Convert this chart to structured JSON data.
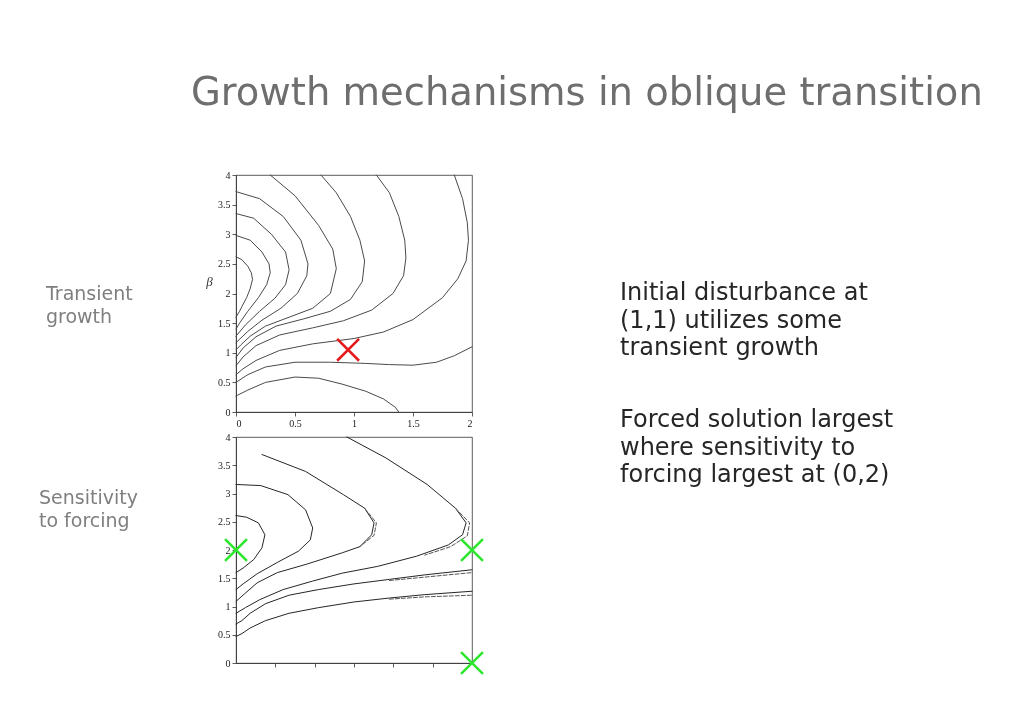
{
  "chart_data": [
    {
      "type": "line",
      "title": "Growth mechanisms in oblique transition",
      "ylabel": "β",
      "annotations": [
        "Transient\ngrowth"
      ],
      "xlim": [
        0,
        2
      ],
      "ylim": [
        0,
        4
      ],
      "xticks": [
        0,
        0.5,
        1,
        1.5,
        2
      ],
      "yticks": [
        0,
        0.5,
        1,
        1.5,
        2,
        2.5,
        3,
        3.5,
        4
      ],
      "grid": false,
      "series": [
        {
          "color": "#4a4a4a",
          "x": [
            0,
            0.05,
            0.1,
            0.13,
            0.14,
            0.12,
            0.09,
            0.05,
            0.03,
            0
          ],
          "values": [
            2.62,
            2.57,
            2.46,
            2.35,
            2.24,
            2.08,
            1.93,
            1.78,
            1.7,
            1.6
          ]
        },
        {
          "color": "#4a4a4a",
          "x": [
            0,
            0.12,
            0.22,
            0.28,
            0.29,
            0.26,
            0.19,
            0.1,
            0.03,
            0
          ],
          "values": [
            2.98,
            2.9,
            2.7,
            2.5,
            2.35,
            2.15,
            1.93,
            1.7,
            1.5,
            1.4
          ]
        },
        {
          "color": "#4a4a4a",
          "x": [
            0,
            0.15,
            0.3,
            0.42,
            0.45,
            0.42,
            0.33,
            0.2,
            0.08,
            0
          ],
          "values": [
            3.35,
            3.27,
            3.0,
            2.7,
            2.4,
            2.15,
            1.92,
            1.7,
            1.47,
            1.28
          ]
        },
        {
          "color": "#4a4a4a",
          "x": [
            0,
            0.2,
            0.4,
            0.55,
            0.61,
            0.6,
            0.52,
            0.38,
            0.22,
            0.1,
            0
          ],
          "values": [
            3.72,
            3.6,
            3.3,
            2.9,
            2.5,
            2.3,
            2.0,
            1.75,
            1.55,
            1.36,
            1.17
          ]
        },
        {
          "color": "#4a4a4a",
          "x": [
            0.29,
            0.5,
            0.7,
            0.82,
            0.85,
            0.8,
            0.65,
            0.45,
            0.25,
            0.12,
            0.04,
            0
          ],
          "values": [
            4,
            3.65,
            3.15,
            2.75,
            2.42,
            2.0,
            1.75,
            1.6,
            1.45,
            1.28,
            1.13,
            1.05
          ]
        },
        {
          "color": "#4a4a4a",
          "x": [
            0.72,
            0.85,
            0.97,
            1.05,
            1.09,
            1.07,
            0.97,
            0.8,
            0.57,
            0.34,
            0.17,
            0.06,
            0
          ],
          "values": [
            4,
            3.7,
            3.3,
            2.9,
            2.55,
            2.2,
            1.9,
            1.7,
            1.57,
            1.45,
            1.27,
            1.08,
            0.92
          ]
        },
        {
          "color": "#4a4a4a",
          "x": [
            1.19,
            1.3,
            1.38,
            1.43,
            1.44,
            1.42,
            1.33,
            1.15,
            0.91,
            0.65,
            0.37,
            0.17,
            0.06,
            0
          ],
          "values": [
            4,
            3.7,
            3.3,
            2.9,
            2.6,
            2.3,
            2.0,
            1.72,
            1.54,
            1.42,
            1.3,
            1.12,
            0.93,
            0.78
          ]
        },
        {
          "color": "#4a4a4a",
          "x": [
            1.85,
            1.92,
            1.96,
            1.97,
            1.95,
            1.88,
            1.75,
            1.5,
            1.25,
            1.0,
            0.65,
            0.37,
            0.17,
            0.06,
            0
          ],
          "values": [
            4,
            3.6,
            3.2,
            2.9,
            2.55,
            2.25,
            1.93,
            1.56,
            1.35,
            1.24,
            1.15,
            1.04,
            0.87,
            0.73,
            0.63
          ]
        },
        {
          "color": "#4a4a4a",
          "x": [
            0,
            0.1,
            0.25,
            0.5,
            0.8,
            1.1,
            1.3,
            1.5,
            1.7,
            1.85,
            2
          ],
          "values": [
            0.5,
            0.63,
            0.76,
            0.84,
            0.84,
            0.82,
            0.8,
            0.79,
            0.84,
            0.95,
            1.1
          ]
        },
        {
          "color": "#4a4a4a",
          "x": [
            0,
            0.1,
            0.25,
            0.5,
            0.7,
            0.9,
            1.1,
            1.25,
            1.35,
            1.38
          ],
          "values": [
            0.27,
            0.37,
            0.5,
            0.59,
            0.57,
            0.47,
            0.35,
            0.22,
            0.08,
            0
          ]
        },
        {
          "type": "scatter",
          "marker": "cross",
          "color": "#e41a1c",
          "x": [
            0.95
          ],
          "values": [
            1.05
          ]
        }
      ]
    },
    {
      "type": "line",
      "annotations": [
        "Sensitivity\nto forcing"
      ],
      "xlim": [
        0,
        2
      ],
      "ylim": [
        0,
        4
      ],
      "xticks": [
        {
          "value": 0.333,
          "label": null
        },
        {
          "value": 0.667,
          "label": null
        },
        {
          "value": 1,
          "label": null
        },
        {
          "value": 1.333,
          "label": null
        },
        {
          "value": 1.667,
          "label": null
        }
      ],
      "yticks": [
        0,
        0.5,
        1,
        1.5,
        2,
        2.5,
        3,
        3.5,
        4
      ],
      "tick_labels": "y",
      "grid": false,
      "series": [
        {
          "color": "#262626",
          "x": [
            0,
            0.09,
            0.19,
            0.245,
            0.22,
            0.15,
            0.06,
            0
          ],
          "values": [
            2.61,
            2.58,
            2.48,
            2.27,
            2.04,
            1.83,
            1.68,
            1.6
          ]
        },
        {
          "color": "#262626",
          "x": [
            0,
            0.21,
            0.44,
            0.59,
            0.65,
            0.63,
            0.53,
            0.35,
            0.18,
            0.06,
            0
          ],
          "values": [
            3.16,
            3.14,
            2.98,
            2.71,
            2.39,
            2.18,
            1.98,
            1.78,
            1.58,
            1.4,
            1.3
          ]
        },
        {
          "color": "#262626",
          "x": [
            0.22,
            0.59,
            0.91,
            1.09,
            1.17,
            1.15,
            1.05,
            0.9,
            0.6,
            0.35,
            0.18,
            0.07,
            0
          ],
          "values": [
            3.69,
            3.39,
            2.98,
            2.74,
            2.48,
            2.27,
            2.06,
            1.95,
            1.75,
            1.6,
            1.42,
            1.22,
            1.09
          ]
        },
        {
          "color": "#262626",
          "x": [
            0.94,
            1.27,
            1.62,
            1.86,
            1.95,
            1.92,
            1.8,
            1.53,
            1.2,
            0.9,
            0.65,
            0.4,
            0.2,
            0.08,
            0
          ],
          "values": [
            4,
            3.63,
            3.16,
            2.74,
            2.48,
            2.27,
            2.09,
            1.89,
            1.71,
            1.59,
            1.45,
            1.3,
            1.12,
            0.98,
            0.88
          ]
        },
        {
          "color": "#262626",
          "x": [
            0,
            0.05,
            0.12,
            0.25,
            0.45,
            0.7,
            1.0,
            1.3,
            1.6,
            2
          ],
          "values": [
            0.69,
            0.75,
            0.88,
            1.05,
            1.2,
            1.3,
            1.4,
            1.48,
            1.56,
            1.65
          ]
        },
        {
          "color": "#262626",
          "x": [
            0,
            0.05,
            0.12,
            0.25,
            0.45,
            0.7,
            1.0,
            1.3,
            1.6,
            2
          ],
          "values": [
            0.47,
            0.52,
            0.62,
            0.75,
            0.88,
            0.98,
            1.08,
            1.15,
            1.21,
            1.27
          ]
        },
        {
          "color": "#555555",
          "line_style": "dashed",
          "x": [
            1.09,
            1.19,
            1.17,
            1.05
          ],
          "values": [
            2.74,
            2.48,
            2.26,
            2.06
          ]
        },
        {
          "color": "#555555",
          "line_style": "dashed",
          "x": [
            1.86,
            1.98,
            1.96,
            1.82,
            1.6
          ],
          "values": [
            2.74,
            2.48,
            2.25,
            2.06,
            1.91
          ]
        },
        {
          "color": "#555555",
          "line_style": "dashed",
          "x": [
            1.3,
            1.6,
            2
          ],
          "values": [
            1.46,
            1.52,
            1.6
          ]
        },
        {
          "color": "#555555",
          "line_style": "dashed",
          "x": [
            1.3,
            1.6,
            2
          ],
          "values": [
            1.13,
            1.17,
            1.2
          ]
        },
        {
          "type": "scatter",
          "marker": "cross",
          "color": "#2ee62e",
          "x": [
            0,
            2,
            2
          ],
          "values": [
            2,
            2,
            0
          ]
        }
      ]
    },
    {
      "type": "other",
      "annotations": [
        "Initial disturbance at\n(1,1) utilizes some\ntransient growth",
        "Forced solution largest\nwhere sensitivity to\nforcing largest at (0,2)"
      ]
    }
  ]
}
